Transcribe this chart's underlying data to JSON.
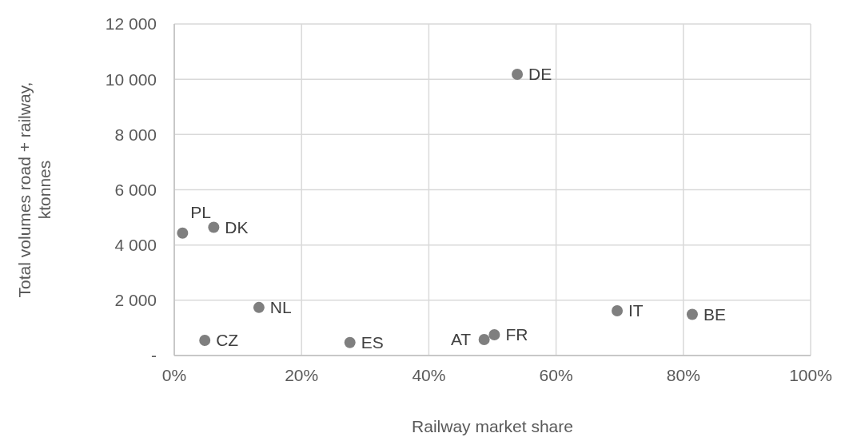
{
  "chart_data": {
    "type": "scatter",
    "xlabel": "Railway market share",
    "ylabel": "Total volumes road + railway, ktonnes",
    "x": [
      1.3,
      6.2,
      53.9,
      13.3,
      4.8,
      27.6,
      48.7,
      50.3,
      69.6,
      81.4
    ],
    "series": [
      {
        "color": "#7f7f7f",
        "values": [
          4430,
          4640,
          10180,
          1740,
          550,
          470,
          580,
          750,
          1620,
          1490
        ]
      }
    ],
    "annotations": [
      {
        "text": "PL",
        "x": 1.3,
        "y": 4430
      },
      {
        "text": "DK",
        "x": 6.2,
        "y": 4640
      },
      {
        "text": "DE",
        "x": 53.9,
        "y": 10180
      },
      {
        "text": "NL",
        "x": 13.3,
        "y": 1740
      },
      {
        "text": "CZ",
        "x": 4.8,
        "y": 550
      },
      {
        "text": "ES",
        "x": 27.6,
        "y": 470
      },
      {
        "text": "AT",
        "x": 48.7,
        "y": 580
      },
      {
        "text": "FR",
        "x": 50.3,
        "y": 750
      },
      {
        "text": "IT",
        "x": 69.6,
        "y": 1620
      },
      {
        "text": "BE",
        "x": 81.4,
        "y": 1490
      }
    ],
    "xlim": [
      0,
      100
    ],
    "xticks": [
      {
        "value": 0,
        "label": "0%"
      },
      {
        "value": 20,
        "label": "20%"
      },
      {
        "value": 40,
        "label": "40%"
      },
      {
        "value": 60,
        "label": "60%"
      },
      {
        "value": 80,
        "label": "80%"
      },
      {
        "value": 100,
        "label": "100%"
      }
    ],
    "ylim": [
      0,
      12000
    ],
    "yticks": [
      {
        "value": 0,
        "label": "-"
      },
      {
        "value": 2000,
        "label": "2 000"
      },
      {
        "value": 4000,
        "label": "4 000"
      },
      {
        "value": 6000,
        "label": "6 000"
      },
      {
        "value": 8000,
        "label": "8 000"
      },
      {
        "value": 10000,
        "label": "10 000"
      },
      {
        "value": 12000,
        "label": "12 000"
      }
    ],
    "grid": true,
    "marker": "circle"
  }
}
